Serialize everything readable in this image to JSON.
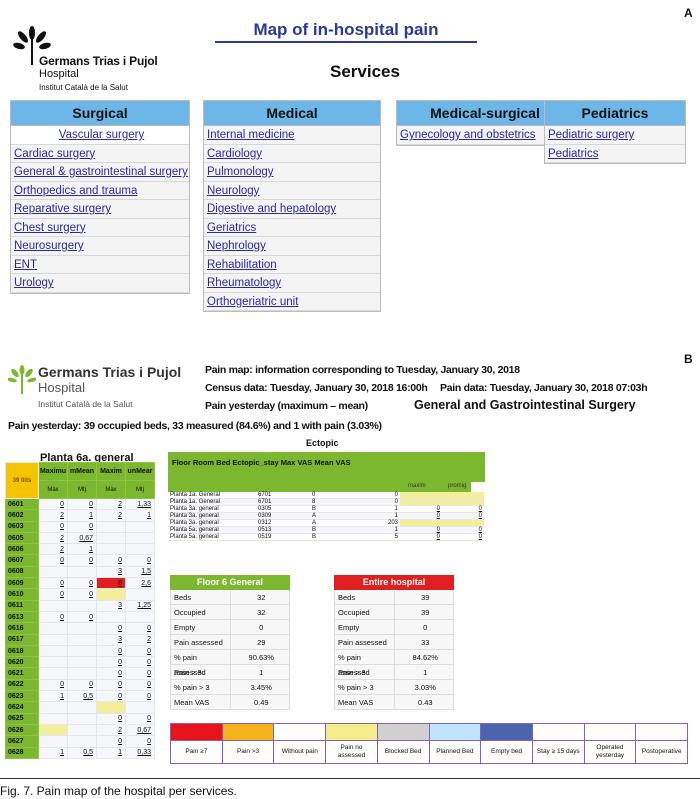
{
  "panelA": {
    "label": "A",
    "title": "Map of in-hospital pain",
    "subtitle": "Services",
    "logo": {
      "name": "Germans Trias i Pujol",
      "sub": "Hospital",
      "inst": "Institut Català de la Salut"
    },
    "columns": [
      {
        "header": "Surgical",
        "items": [
          "Vascular surgery",
          "Cardiac surgery",
          "General & gastrointestinal surgery",
          "Orthopedics and trauma",
          "Reparative surgery",
          "Chest surgery",
          "Neurosurgery",
          "ENT",
          "Urology"
        ]
      },
      {
        "header": "Medical",
        "items": [
          "Internal medicine",
          "Cardiology",
          "Pulmonology",
          "Neurology",
          "Digestive and hepatology",
          "Geriatrics",
          "Nephrology",
          "Rehabilitation",
          "Rheumatology",
          "Orthogeriatric unit"
        ]
      },
      {
        "header": "Medical-surgical",
        "items": [
          "Gynecology and obstetrics"
        ]
      },
      {
        "header": "Pediatrics",
        "items": [
          "Pediatric surgery",
          "Pediatrics"
        ]
      }
    ],
    "header_color": "#6db6e8"
  },
  "panelB": {
    "label": "B",
    "logo": {
      "name": "Germans Trias i Pujol",
      "sub": "Hospital",
      "inst": "Institut Català de la Salut"
    },
    "info1": "Pain map: information corresponding to Tuesday, January 30, 2018",
    "census": "Census data: Tuesday, January 30, 2018 16:00h",
    "paindata": "Pain data: Tuesday, January 30, 2018 07:03h",
    "yesterday": "Pain yesterday (maximum – mean)",
    "service": "General and Gastrointestinal Surgery",
    "summary": "Pain yesterday: 39 occupied beds, 33 measured (84.6%) and 1 with pain (3.03%)",
    "ectopic_title": "Ectopic",
    "planta": {
      "title": "Planta 6a. general",
      "beds_label": "39 llits",
      "headers": [
        "Maximu",
        "mMean",
        "Maxim",
        "unMear"
      ],
      "subheaders": [
        "Màx",
        "Mtj",
        "Màx",
        "Mtj"
      ],
      "rows": [
        [
          "0601",
          "0",
          "0",
          "2",
          "1,33"
        ],
        [
          "0602",
          "2",
          "1",
          "2",
          "1"
        ],
        [
          "0603",
          "0",
          "0",
          "",
          ""
        ],
        [
          "0605",
          "2",
          "0,67",
          "",
          ""
        ],
        [
          "0606",
          "2",
          "1",
          "",
          ""
        ],
        [
          "0607",
          "0",
          "0",
          "0",
          "0"
        ],
        [
          "0608",
          "",
          "",
          "3",
          "1,5"
        ],
        [
          "0609",
          "0",
          "0",
          "8",
          "2,6"
        ],
        [
          "0610",
          "0",
          "0",
          "Y",
          ""
        ],
        [
          "0611",
          "",
          "",
          "3",
          "1,25"
        ],
        [
          "0613",
          "0",
          "0",
          "",
          ""
        ],
        [
          "0616",
          "",
          "",
          "0",
          "0"
        ],
        [
          "0617",
          "",
          "",
          "3",
          "2"
        ],
        [
          "0618",
          "",
          "",
          "0",
          "0"
        ],
        [
          "0620",
          "",
          "",
          "0",
          "0"
        ],
        [
          "0621",
          "",
          "",
          "0",
          "0"
        ],
        [
          "0622",
          "0",
          "0",
          "0",
          "0"
        ],
        [
          "0623",
          "1",
          "0,5",
          "0",
          "0"
        ],
        [
          "0624",
          "",
          "",
          "Y",
          ""
        ],
        [
          "0625",
          "",
          "",
          "0",
          "0"
        ],
        [
          "0626",
          "Y",
          "",
          "2",
          "0,67"
        ],
        [
          "0627",
          "",
          "",
          "0",
          "0"
        ],
        [
          "0628",
          "1",
          "0,5",
          "1",
          "0,33"
        ]
      ]
    },
    "ectopic": {
      "header": "Floor Room Bed Ectopic_stay Max VAS Mean VAS",
      "cols": [
        "maxim",
        "promig"
      ],
      "rows": [
        [
          "Planta 1a. General",
          "6701",
          "0",
          "0",
          "Y",
          "Y"
        ],
        [
          "Planta 1a. General",
          "6701",
          "8",
          "0",
          "Y",
          "Y"
        ],
        [
          "Planta 3a. general",
          "0305",
          "B",
          "1",
          "0",
          "0"
        ],
        [
          "Planta 3a. general",
          "0309",
          "A",
          "1",
          "0",
          "0"
        ],
        [
          "Planta 3a. general",
          "0312",
          "A",
          "203",
          "Y",
          "Y"
        ],
        [
          "Planta 5a. general",
          "0513",
          "B",
          "1",
          "0",
          "0"
        ],
        [
          "Planta 5a. general",
          "0519",
          "B",
          "5",
          "0",
          "0"
        ]
      ]
    },
    "floor6": {
      "title": "Floor 6 General",
      "color": "#7cb82f",
      "rows": [
        [
          "Beds",
          "32"
        ],
        [
          "Occupied",
          "32"
        ],
        [
          "Empty",
          "0"
        ],
        [
          "Pain assessed",
          "29"
        ],
        [
          "% pain assessed",
          "90.63%"
        ],
        [
          "Pain > 3",
          "1"
        ],
        [
          "% pain > 3",
          "3.45%"
        ],
        [
          "Mean VAS",
          "0.49"
        ]
      ]
    },
    "hospital": {
      "title": "Entire hospital",
      "color": "#e02020",
      "rows": [
        [
          "Beds",
          "39"
        ],
        [
          "Occupied",
          "39"
        ],
        [
          "Empty",
          "0"
        ],
        [
          "Pain assessed",
          "33"
        ],
        [
          "% pain assessed",
          "84.62%"
        ],
        [
          "Pain > 3",
          "1"
        ],
        [
          "% pain > 3",
          "3.03%"
        ],
        [
          "Mean VAS",
          "0.43"
        ]
      ]
    },
    "legend": [
      {
        "label": "Pain ≥7",
        "color": "#e8141c"
      },
      {
        "label": "Pain >3",
        "color": "#f4b41a"
      },
      {
        "label": "Without pain",
        "color": "#ffffff"
      },
      {
        "label": "Pain no assessed",
        "color": "#f2ee8c"
      },
      {
        "label": "Blocked Bed",
        "color": "#d0d0d0"
      },
      {
        "label": "Planned Bed",
        "color": "#bfe3f8"
      },
      {
        "label": "Empty bed",
        "color": "#4a64b0"
      },
      {
        "label": "Stay ≥ 15 days",
        "color": "#ffffff"
      },
      {
        "label": "Operated yesterday",
        "color": "#ffffff"
      },
      {
        "label": "Postoperative",
        "color": "#ffffff"
      }
    ]
  },
  "caption": "Fig. 7. Pain map of the hospital per services."
}
